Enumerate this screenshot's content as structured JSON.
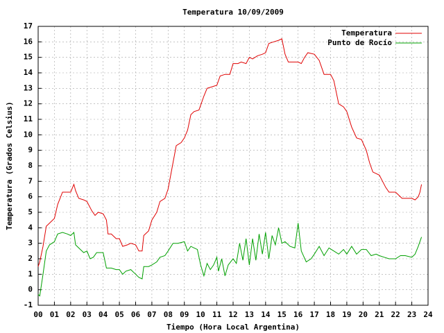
{
  "chart_data": {
    "type": "line",
    "title": "Temperatura 10/09/2009",
    "x_label": "Tiempo (Hora Local Argentina)",
    "y_label": "Temperatura (Grados Celsius)",
    "xlim": [
      0,
      24
    ],
    "ylim": [
      -1,
      17
    ],
    "xticks": [
      {
        "value": 0,
        "label": "00"
      },
      {
        "value": 1,
        "label": "01"
      },
      {
        "value": 2,
        "label": "02"
      },
      {
        "value": 3,
        "label": "03"
      },
      {
        "value": 4,
        "label": "04"
      },
      {
        "value": 5,
        "label": "05"
      },
      {
        "value": 6,
        "label": "06"
      },
      {
        "value": 7,
        "label": "07"
      },
      {
        "value": 8,
        "label": "08"
      },
      {
        "value": 9,
        "label": "09"
      },
      10,
      11,
      12,
      13,
      14,
      15,
      16,
      17,
      18,
      19,
      20,
      21,
      22,
      23,
      24
    ],
    "yticks": [
      -1,
      0,
      1,
      2,
      3,
      4,
      5,
      6,
      7,
      8,
      9,
      10,
      11,
      12,
      13,
      14,
      15,
      16,
      17
    ],
    "grid": true,
    "legend": "top-right",
    "series": [
      {
        "name": "Temperatura",
        "color": "#e00000",
        "x": [
          0.0,
          0.1,
          0.3,
          0.5,
          0.7,
          1.0,
          1.2,
          1.5,
          1.8,
          2.0,
          2.2,
          2.3,
          2.5,
          2.8,
          3.0,
          3.3,
          3.5,
          3.7,
          4.0,
          4.2,
          4.3,
          4.5,
          4.8,
          5.0,
          5.2,
          5.5,
          5.7,
          6.0,
          6.2,
          6.4,
          6.5,
          6.8,
          7.0,
          7.3,
          7.5,
          7.8,
          8.0,
          8.3,
          8.5,
          8.8,
          9.0,
          9.2,
          9.4,
          9.6,
          9.9,
          10.2,
          10.4,
          10.7,
          11.0,
          11.2,
          11.5,
          11.8,
          12.0,
          12.3,
          12.5,
          12.8,
          13.0,
          13.2,
          13.5,
          13.8,
          14.0,
          14.2,
          14.5,
          14.8,
          15.0,
          15.2,
          15.4,
          15.7,
          16.0,
          16.2,
          16.4,
          16.6,
          17.0,
          17.3,
          17.6,
          18.0,
          18.2,
          18.5,
          18.8,
          19.0,
          19.3,
          19.6,
          19.9,
          20.2,
          20.4,
          20.6,
          21.0,
          21.2,
          21.4,
          21.6,
          22.0,
          22.2,
          22.4,
          22.8,
          23.0,
          23.2,
          23.4,
          23.5,
          23.6
        ],
        "values": [
          1.5,
          1.8,
          2.8,
          4.1,
          4.3,
          4.6,
          5.5,
          6.3,
          6.3,
          6.3,
          6.8,
          6.4,
          5.9,
          5.8,
          5.7,
          5.1,
          4.8,
          5.0,
          4.9,
          4.5,
          3.6,
          3.6,
          3.3,
          3.3,
          2.8,
          2.9,
          3.0,
          2.9,
          2.5,
          2.5,
          3.5,
          3.8,
          4.5,
          5.0,
          5.7,
          5.9,
          6.5,
          8.2,
          9.3,
          9.5,
          9.8,
          10.3,
          11.3,
          11.5,
          11.6,
          12.5,
          13.0,
          13.1,
          13.2,
          13.8,
          13.9,
          13.9,
          14.6,
          14.6,
          14.7,
          14.6,
          15.0,
          14.9,
          15.1,
          15.2,
          15.3,
          15.9,
          16.0,
          16.1,
          16.2,
          15.2,
          14.7,
          14.7,
          14.7,
          14.6,
          15.0,
          15.3,
          15.2,
          14.8,
          13.9,
          13.9,
          13.5,
          12.0,
          11.8,
          11.5,
          10.5,
          9.8,
          9.7,
          9.0,
          8.2,
          7.6,
          7.4,
          7.0,
          6.6,
          6.3,
          6.3,
          6.1,
          5.9,
          5.9,
          5.9,
          5.8,
          6.0,
          6.3,
          6.8
        ]
      },
      {
        "name": "Punto de Rocío",
        "color": "#00a000",
        "x": [
          0.0,
          0.1,
          0.3,
          0.5,
          0.7,
          1.0,
          1.2,
          1.5,
          1.8,
          2.0,
          2.2,
          2.3,
          2.5,
          2.8,
          3.0,
          3.2,
          3.4,
          3.6,
          4.0,
          4.2,
          4.5,
          4.8,
          5.0,
          5.2,
          5.4,
          5.7,
          6.0,
          6.2,
          6.4,
          6.5,
          6.8,
          7.0,
          7.3,
          7.5,
          7.8,
          8.0,
          8.3,
          8.6,
          9.0,
          9.2,
          9.4,
          9.6,
          9.8,
          10.0,
          10.2,
          10.4,
          10.6,
          10.8,
          11.0,
          11.1,
          11.3,
          11.5,
          11.7,
          12.0,
          12.2,
          12.4,
          12.6,
          12.8,
          13.0,
          13.2,
          13.4,
          13.6,
          13.8,
          14.0,
          14.2,
          14.4,
          14.6,
          14.8,
          15.0,
          15.2,
          15.5,
          15.8,
          16.0,
          16.2,
          16.5,
          16.8,
          17.0,
          17.3,
          17.6,
          17.9,
          18.2,
          18.5,
          18.8,
          19.0,
          19.3,
          19.6,
          19.9,
          20.2,
          20.5,
          20.8,
          21.0,
          21.3,
          21.6,
          22.0,
          22.3,
          22.6,
          23.0,
          23.2,
          23.4,
          23.6
        ],
        "values": [
          -0.3,
          -0.4,
          1.0,
          2.5,
          2.9,
          3.1,
          3.6,
          3.7,
          3.6,
          3.5,
          3.7,
          2.9,
          2.7,
          2.4,
          2.5,
          2.0,
          2.1,
          2.4,
          2.4,
          1.4,
          1.4,
          1.3,
          1.3,
          1.0,
          1.2,
          1.3,
          1.0,
          0.8,
          0.7,
          1.5,
          1.5,
          1.6,
          1.8,
          2.1,
          2.2,
          2.5,
          3.0,
          3.0,
          3.1,
          2.5,
          2.8,
          2.7,
          2.6,
          1.6,
          0.9,
          1.7,
          1.3,
          1.6,
          2.1,
          1.2,
          2.0,
          0.9,
          1.6,
          2.0,
          1.7,
          3.0,
          1.9,
          3.3,
          1.6,
          3.3,
          1.9,
          3.6,
          2.3,
          3.7,
          2.0,
          3.5,
          2.9,
          4.0,
          3.0,
          3.1,
          2.8,
          2.7,
          4.3,
          2.5,
          1.8,
          2.0,
          2.3,
          2.8,
          2.2,
          2.7,
          2.5,
          2.3,
          2.6,
          2.3,
          2.8,
          2.3,
          2.6,
          2.6,
          2.2,
          2.3,
          2.2,
          2.1,
          2.0,
          2.0,
          2.2,
          2.2,
          2.1,
          2.3,
          2.8,
          3.4
        ]
      }
    ]
  }
}
